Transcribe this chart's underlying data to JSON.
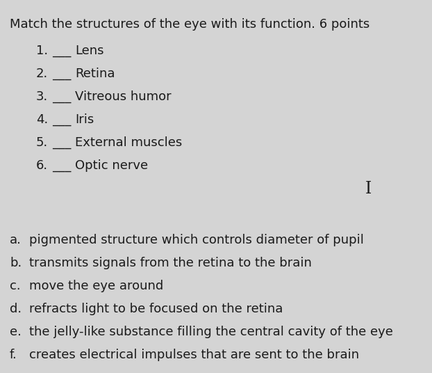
{
  "background_color": "#d4d4d4",
  "title": "Match the structures of the eye with its function. 6 points",
  "title_fontsize": 12.5,
  "title_fontweight": "normal",
  "numbered_items": [
    {
      "num": "1.",
      "blank": "___",
      "text": "Lens"
    },
    {
      "num": "2.",
      "blank": "___",
      "text": "Retina"
    },
    {
      "num": "3.",
      "blank": "___",
      "text": "Vitreous humor"
    },
    {
      "num": "4.",
      "blank": "___",
      "text": "Iris"
    },
    {
      "num": "5.",
      "blank": "___",
      "text": "External muscles"
    },
    {
      "num": "6.",
      "blank": "___",
      "text": "Optic nerve"
    }
  ],
  "lettered_items": [
    {
      "letter": "a.",
      "text": "pigmented structure which controls diameter of pupil"
    },
    {
      "letter": "b.",
      "text": "transmits signals from the retina to the brain"
    },
    {
      "letter": "c.",
      "text": "move the eye around"
    },
    {
      "letter": "d.",
      "text": "refracts light to be focused on the retina"
    },
    {
      "letter": "e.",
      "text": "the jelly-like substance filling the central cavity of the eye"
    },
    {
      "letter": "f.",
      "text": "creates electrical impulses that are sent to the brain"
    }
  ],
  "text_color": "#1a1a1a",
  "figwidth": 6.22,
  "figheight": 5.36,
  "dpi": 100
}
